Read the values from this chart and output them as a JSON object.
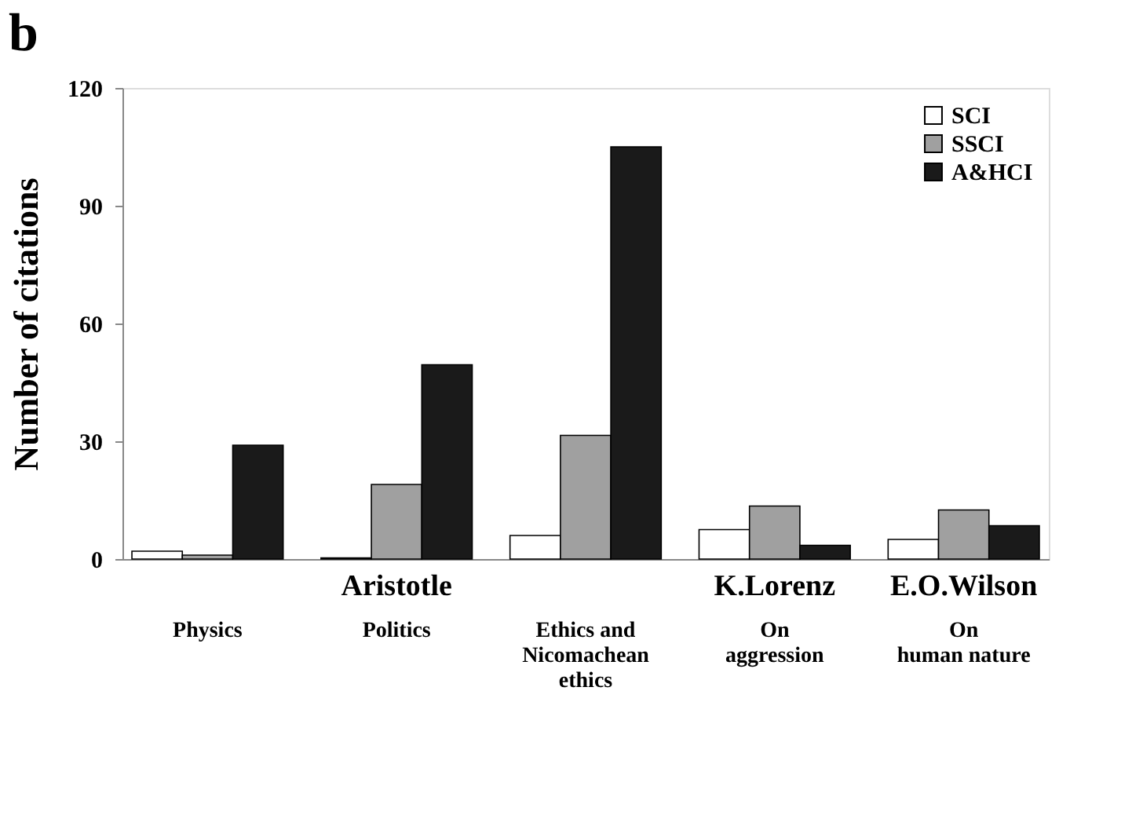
{
  "chart_data": {
    "type": "bar",
    "title": "b",
    "ylabel": "Number of citations",
    "categories": [
      "Physics",
      "Politics",
      "Ethics and\nNicomachean\nethics",
      "On\naggression",
      "On\nhuman nature"
    ],
    "series": [
      {
        "name": "SCI",
        "color": "#ffffff",
        "values": [
          2,
          0.3,
          6,
          7.5,
          5
        ]
      },
      {
        "name": "SSCI",
        "color": "#a0a0a0",
        "values": [
          1,
          19,
          31.5,
          13.5,
          12.5
        ]
      },
      {
        "name": "A&HCI",
        "color": "#1a1a1a",
        "values": [
          29,
          49.5,
          105,
          3.5,
          8.5
        ]
      }
    ],
    "ylim": [
      0,
      120
    ],
    "yticks": [
      0,
      30,
      60,
      90,
      120
    ],
    "grid": false,
    "legend": "top right",
    "annotations": [
      "Aristotle",
      "K.Lorenz",
      "E.O.Wilson"
    ]
  }
}
